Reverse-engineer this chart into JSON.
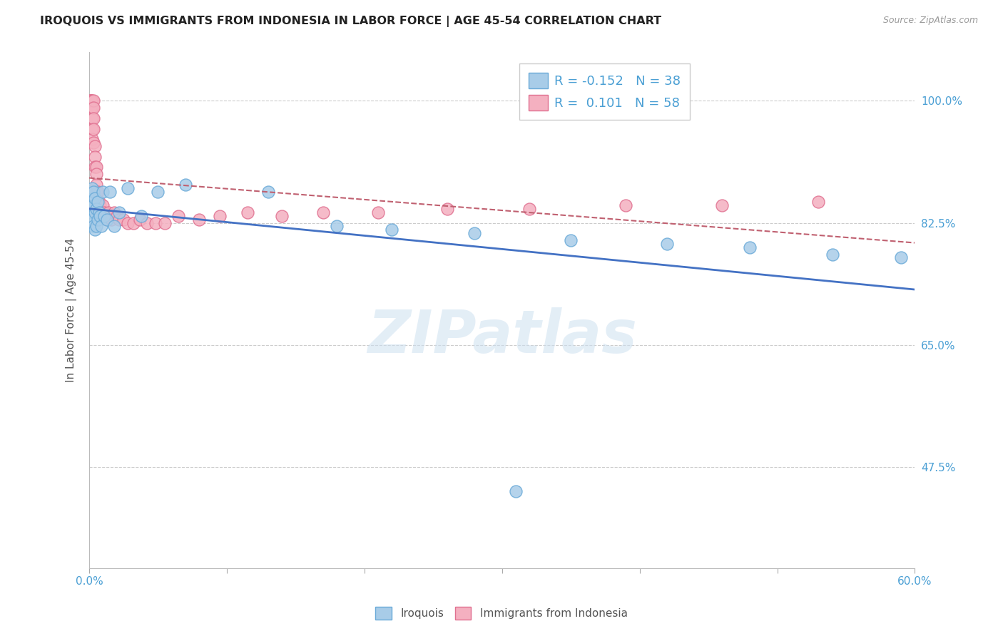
{
  "title": "IROQUOIS VS IMMIGRANTS FROM INDONESIA IN LABOR FORCE | AGE 45-54 CORRELATION CHART",
  "source": "Source: ZipAtlas.com",
  "ylabel": "In Labor Force | Age 45-54",
  "ytick_labels": [
    "100.0%",
    "82.5%",
    "65.0%",
    "47.5%"
  ],
  "ytick_values": [
    1.0,
    0.825,
    0.65,
    0.475
  ],
  "xmin": 0.0,
  "xmax": 0.6,
  "ymin": 0.33,
  "ymax": 1.07,
  "r_iroquois": -0.152,
  "n_iroquois": 38,
  "r_indonesia": 0.101,
  "n_indonesia": 58,
  "legend_label_1": "Iroquois",
  "legend_label_2": "Immigrants from Indonesia",
  "color_iroquois_fill": "#a8cce8",
  "color_iroquois_edge": "#6aaad8",
  "color_indonesia_fill": "#f4b0c0",
  "color_indonesia_edge": "#e07090",
  "color_line_iroquois": "#4472c4",
  "color_line_indonesia": "#c06070",
  "color_text_axis": "#4a9fd4",
  "color_grid": "#cccccc",
  "watermark_color": "#cce0f0",
  "iroquois_x": [
    0.001,
    0.001,
    0.002,
    0.002,
    0.002,
    0.003,
    0.003,
    0.003,
    0.004,
    0.004,
    0.004,
    0.005,
    0.005,
    0.006,
    0.006,
    0.007,
    0.008,
    0.009,
    0.01,
    0.011,
    0.013,
    0.015,
    0.018,
    0.022,
    0.028,
    0.038,
    0.05,
    0.07,
    0.13,
    0.18,
    0.22,
    0.28,
    0.35,
    0.42,
    0.48,
    0.54,
    0.59,
    0.31
  ],
  "iroquois_y": [
    0.86,
    0.84,
    0.875,
    0.855,
    0.83,
    0.87,
    0.85,
    0.82,
    0.86,
    0.84,
    0.815,
    0.845,
    0.82,
    0.855,
    0.83,
    0.84,
    0.835,
    0.82,
    0.87,
    0.835,
    0.83,
    0.87,
    0.82,
    0.84,
    0.875,
    0.835,
    0.87,
    0.88,
    0.87,
    0.82,
    0.815,
    0.81,
    0.8,
    0.795,
    0.79,
    0.78,
    0.775,
    0.44
  ],
  "indonesia_x": [
    0.001,
    0.001,
    0.001,
    0.001,
    0.002,
    0.002,
    0.002,
    0.002,
    0.002,
    0.003,
    0.003,
    0.003,
    0.003,
    0.003,
    0.004,
    0.004,
    0.004,
    0.005,
    0.005,
    0.005,
    0.005,
    0.006,
    0.006,
    0.007,
    0.007,
    0.008,
    0.008,
    0.009,
    0.01,
    0.01,
    0.011,
    0.012,
    0.013,
    0.014,
    0.015,
    0.016,
    0.018,
    0.02,
    0.022,
    0.025,
    0.028,
    0.032,
    0.037,
    0.042,
    0.048,
    0.055,
    0.065,
    0.08,
    0.095,
    0.115,
    0.14,
    0.17,
    0.21,
    0.26,
    0.32,
    0.39,
    0.46,
    0.53
  ],
  "indonesia_y": [
    1.0,
    1.0,
    1.0,
    0.99,
    1.0,
    0.99,
    0.975,
    0.96,
    0.945,
    1.0,
    0.99,
    0.975,
    0.96,
    0.94,
    0.935,
    0.92,
    0.905,
    0.905,
    0.895,
    0.88,
    0.87,
    0.87,
    0.855,
    0.855,
    0.84,
    0.85,
    0.835,
    0.84,
    0.85,
    0.835,
    0.84,
    0.835,
    0.83,
    0.84,
    0.835,
    0.83,
    0.84,
    0.835,
    0.83,
    0.83,
    0.825,
    0.825,
    0.83,
    0.825,
    0.825,
    0.825,
    0.835,
    0.83,
    0.835,
    0.84,
    0.835,
    0.84,
    0.84,
    0.845,
    0.845,
    0.85,
    0.85,
    0.855
  ]
}
